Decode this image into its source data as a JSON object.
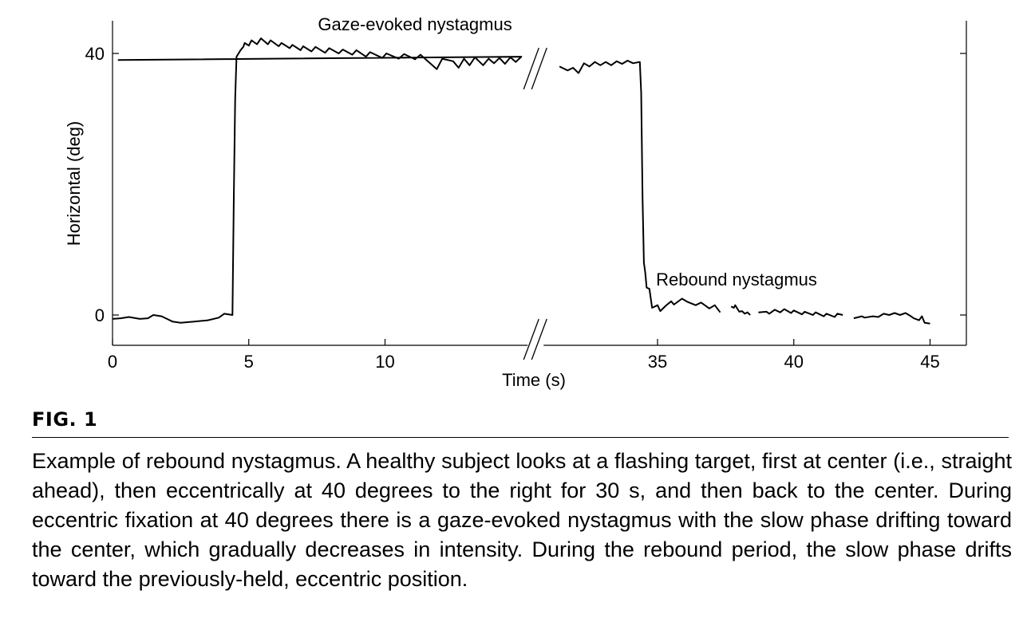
{
  "figure": {
    "label": "FIG. 1",
    "caption": "Example of rebound nystagmus. A healthy subject looks at a flashing target, first at center (i.e., straight ahead), then eccentrically at 40 degrees to the right for 30 s, and then back to the center. During eccentric fixation at 40 degrees there is a gaze-evoked nystagmus with the slow phase drifting toward the center, which gradually decreases in intensity. During the rebound period, the slow phase drifts toward the previously-held, eccentric position."
  },
  "chart_data": {
    "type": "line",
    "title": "",
    "xlabel": "Time (s)",
    "ylabel": "Horizontal (deg)",
    "x_ticks": [
      0,
      5,
      10,
      35,
      40,
      45
    ],
    "y_ticks": [
      0,
      40
    ],
    "ylim": [
      -5,
      45
    ],
    "x_axis_break": [
      15,
      30
    ],
    "annotations": [
      {
        "text": "Gaze-evoked nystagmus",
        "x": 11.1,
        "y": 44.5
      },
      {
        "text": "Rebound nystagmus",
        "x": 37.9,
        "y": 5.5
      }
    ],
    "series": [
      {
        "points": [
          [
            0,
            -0.6
          ],
          [
            0.3,
            -0.5
          ],
          [
            0.6,
            -0.3
          ],
          [
            1,
            -0.6
          ],
          [
            1.3,
            -0.5
          ],
          [
            1.5,
            0
          ],
          [
            1.8,
            -0.2
          ],
          [
            2,
            -0.6
          ],
          [
            2.2,
            -1
          ],
          [
            2.5,
            -1.2
          ],
          [
            3,
            -1
          ],
          [
            3.5,
            -0.8
          ],
          [
            3.9,
            -0.4
          ],
          [
            4.1,
            0.2
          ],
          [
            4.4,
            0
          ],
          [
            4.45,
            18
          ],
          [
            4.5,
            33
          ],
          [
            4.55,
            39.5
          ],
          [
            4.7,
            40.5
          ],
          [
            4.8,
            41
          ],
          [
            4.85,
            41.6
          ],
          [
            5.0,
            41.2
          ],
          [
            5.1,
            42
          ],
          [
            5.3,
            41.4
          ],
          [
            5.45,
            42.3
          ],
          [
            5.7,
            41.4
          ],
          [
            5.8,
            42
          ],
          [
            6.1,
            41.1
          ],
          [
            6.2,
            41.6
          ],
          [
            6.5,
            40.8
          ],
          [
            6.6,
            41.3
          ],
          [
            6.9,
            40.5
          ],
          [
            7.0,
            41.1
          ],
          [
            7.3,
            40.3
          ],
          [
            7.45,
            41
          ],
          [
            7.8,
            40.1
          ],
          [
            7.95,
            40.8
          ],
          [
            8.3,
            40
          ],
          [
            8.45,
            40.6
          ],
          [
            8.8,
            39.8
          ],
          [
            8.95,
            40.5
          ],
          [
            9.3,
            39.5
          ],
          [
            9.45,
            40.2
          ],
          [
            9.9,
            39.3
          ],
          [
            10.05,
            40
          ],
          [
            10.5,
            39.2
          ],
          [
            10.7,
            39.9
          ],
          [
            11.1,
            39.1
          ],
          [
            11.3,
            39.8
          ],
          [
            11.9,
            37.6
          ],
          [
            12.1,
            39.2
          ],
          [
            12.5,
            38.8
          ],
          [
            12.7,
            37.8
          ],
          [
            12.9,
            39.2
          ],
          [
            13.1,
            38.2
          ],
          [
            13.3,
            39.4
          ],
          [
            13.6,
            38.2
          ],
          [
            13.8,
            39.2
          ],
          [
            14.0,
            38.5
          ],
          [
            14.2,
            39.3
          ],
          [
            14.4,
            38.4
          ],
          [
            14.6,
            39.4
          ],
          [
            14.8,
            38.7
          ],
          [
            15.0,
            39.5
          ],
          [
            15.2,
            39
          ]
        ]
      },
      {
        "points": [
          [
            31.4,
            38
          ],
          [
            31.7,
            37.4
          ],
          [
            31.9,
            37.8
          ],
          [
            32.1,
            37.0
          ],
          [
            32.3,
            38.5
          ],
          [
            32.5,
            38
          ],
          [
            32.7,
            38.7
          ],
          [
            32.9,
            38.2
          ],
          [
            33.1,
            38.7
          ],
          [
            33.3,
            38.2
          ],
          [
            33.5,
            38.8
          ],
          [
            33.7,
            38.4
          ],
          [
            33.9,
            38.9
          ],
          [
            34.1,
            38.5
          ],
          [
            34.35,
            38.7
          ],
          [
            34.4,
            34
          ],
          [
            34.45,
            18
          ],
          [
            34.5,
            8
          ],
          [
            34.55,
            6.5
          ],
          [
            34.6,
            4.2
          ],
          [
            34.7,
            4
          ],
          [
            34.8,
            1.1
          ],
          [
            35.0,
            1.5
          ],
          [
            35.1,
            0.6
          ],
          [
            35.3,
            1.4
          ],
          [
            35.5,
            2.1
          ],
          [
            35.6,
            1.6
          ],
          [
            35.9,
            2.5
          ],
          [
            36.1,
            2.0
          ],
          [
            36.4,
            1.5
          ],
          [
            36.6,
            1.9
          ],
          [
            36.9,
            1.0
          ],
          [
            37.1,
            1.5
          ],
          [
            37.3,
            0.4
          ]
        ]
      },
      {
        "points": [
          [
            37.7,
            1.3
          ],
          [
            37.8,
            1.1
          ],
          [
            37.85,
            1.5
          ],
          [
            38.0,
            0.5
          ],
          [
            38.1,
            0.6
          ],
          [
            38.2,
            0.2
          ],
          [
            38.3,
            0.4
          ],
          [
            38.4,
            0.0
          ]
        ]
      },
      {
        "points": [
          [
            38.7,
            0.4
          ],
          [
            39.0,
            0.5
          ],
          [
            39.1,
            0.2
          ],
          [
            39.3,
            0.8
          ],
          [
            39.5,
            0.4
          ],
          [
            39.65,
            0.9
          ],
          [
            39.9,
            0.3
          ],
          [
            40.0,
            0.7
          ],
          [
            40.3,
            0.1
          ],
          [
            40.4,
            0.5
          ],
          [
            40.7,
            0
          ],
          [
            40.8,
            0.4
          ],
          [
            41.1,
            -0.2
          ],
          [
            41.2,
            0.2
          ],
          [
            41.5,
            -0.3
          ],
          [
            41.6,
            0.2
          ],
          [
            41.8,
            0
          ]
        ]
      },
      {
        "points": [
          [
            42.2,
            -0.5
          ],
          [
            42.5,
            -0.2
          ],
          [
            42.6,
            -0.4
          ],
          [
            42.9,
            -0.2
          ],
          [
            43.1,
            -0.3
          ],
          [
            43.3,
            0.2
          ],
          [
            43.5,
            0
          ],
          [
            43.7,
            0.3
          ],
          [
            43.9,
            0
          ],
          [
            44.1,
            0.3
          ],
          [
            44.3,
            -0.2
          ],
          [
            44.4,
            -0.5
          ],
          [
            44.6,
            -0.8
          ],
          [
            44.7,
            -0.2
          ],
          [
            44.8,
            -1.2
          ],
          [
            45.0,
            -1.3
          ]
        ]
      }
    ]
  }
}
